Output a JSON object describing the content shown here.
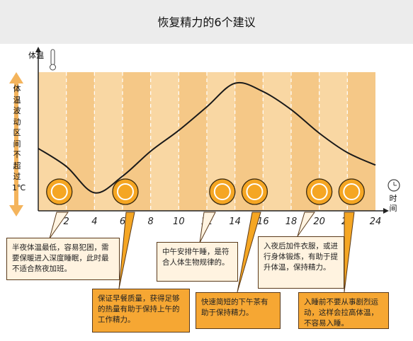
{
  "title": "恢复精力的6个建议",
  "chart_data": {
    "type": "line",
    "ylabel": "体温",
    "y_side_label": "体温波动区间不超过1℃",
    "xlabel": "时间",
    "x_ticks": [
      "2",
      "4",
      "6",
      "8",
      "10",
      "12",
      "14",
      "16",
      "18",
      "20",
      "22",
      "24"
    ],
    "x": [
      0,
      2,
      4,
      6,
      8,
      10,
      12,
      14,
      16,
      18,
      20,
      22,
      24
    ],
    "values": [
      0.45,
      0.32,
      0.13,
      0.25,
      0.43,
      0.58,
      0.75,
      0.92,
      0.86,
      0.73,
      0.56,
      0.42,
      0.33
    ],
    "icons": [
      {
        "name": "moon-icon",
        "hour": 1.5
      },
      {
        "name": "milk-bottle-icon",
        "hour": 6.2
      },
      {
        "name": "pillow-icon",
        "hour": 13.1
      },
      {
        "name": "tea-cup-icon",
        "hour": 15.4
      },
      {
        "name": "shirt-icon",
        "hour": 20
      },
      {
        "name": "no-exercise-icon",
        "hour": 22.3
      }
    ]
  },
  "notes": {
    "midnight": "半夜体温最低，容易犯困，需要保暖进入深度睡眠，此时最不适合熬夜加班。",
    "breakfast": "保证早餐质量，获得足够的热量有助于保持上午的工作精力。",
    "nap": "中午安排午睡，是符合人体生物规律的。",
    "tea": "快速简短的下午茶有助于保持精力。",
    "evening": "入夜后加件衣服，或进行身体锻炼，有助于提升体温，保持精力。",
    "bedtime": "入睡前不要从事剧烈运动，这样会拉高体温，不容易入睡。"
  },
  "colors": {
    "band_a": "#f9d7a3",
    "band_b": "#f5c887",
    "accent": "#f5a623",
    "line": "#1a1a1a"
  }
}
